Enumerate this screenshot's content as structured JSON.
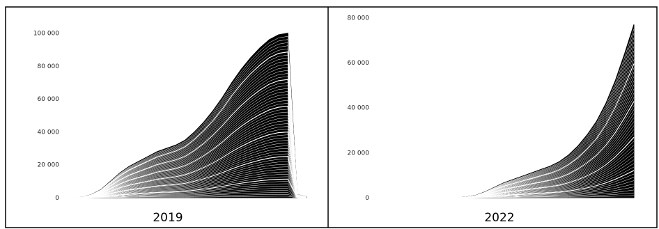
{
  "chart_data": [
    {
      "type": "area",
      "stacked": true,
      "title": "2019",
      "xlabel": "",
      "ylabel": "",
      "ylim": [
        0,
        110000
      ],
      "yticks": [
        0,
        20000,
        40000,
        60000,
        80000,
        100000
      ],
      "ytick_labels": [
        "0",
        "20 000",
        "40 000",
        "60 000",
        "80 000",
        "100 000"
      ],
      "grid": false,
      "legend": "none",
      "fill_color": "#000000",
      "line_color": "#ffffff",
      "num_series": 60,
      "x": [
        0,
        2,
        4,
        6,
        8,
        10,
        12,
        14,
        16,
        18,
        20,
        22,
        24,
        26,
        28,
        30,
        32,
        34,
        36,
        38,
        40,
        42,
        44,
        46,
        48,
        50
      ],
      "total": [
        0,
        300,
        2000,
        5000,
        10000,
        15000,
        19000,
        22000,
        25000,
        28000,
        30000,
        32000,
        35000,
        40000,
        46000,
        53000,
        61000,
        70000,
        78000,
        85000,
        91000,
        96000,
        99000,
        100000,
        2000,
        500
      ]
    },
    {
      "type": "area",
      "stacked": true,
      "title": "2022",
      "xlabel": "",
      "ylabel": "",
      "ylim": [
        0,
        82000
      ],
      "yticks": [
        0,
        20000,
        40000,
        60000,
        80000
      ],
      "ytick_labels": [
        "0",
        "20 000",
        "40 000",
        "60 000",
        "80 000"
      ],
      "grid": false,
      "legend": "none",
      "fill_color": "#000000",
      "line_color": "#ffffff",
      "num_series": 45,
      "x": [
        0,
        2,
        4,
        6,
        8,
        10,
        12,
        14,
        16,
        18,
        20,
        22,
        24,
        26,
        28,
        30,
        32,
        34,
        36,
        38,
        40,
        42,
        44,
        46,
        48,
        50
      ],
      "total": [
        0,
        0,
        0,
        0,
        0,
        0,
        0,
        300,
        1000,
        2500,
        4500,
        6500,
        8000,
        9500,
        11000,
        12500,
        14000,
        16000,
        19000,
        23000,
        28000,
        34000,
        42000,
        52000,
        64000,
        77000
      ]
    }
  ]
}
